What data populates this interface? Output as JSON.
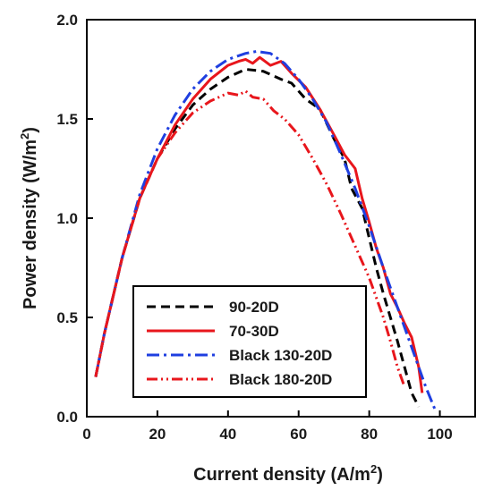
{
  "chart_data": {
    "type": "line",
    "title": "",
    "xlabel": "Current density (A/m",
    "xlabel_sup": "2",
    "xlabel_close": ")",
    "ylabel": "Power density (W/m",
    "ylabel_sup": "2",
    "ylabel_close": ")",
    "xlim": [
      0,
      110
    ],
    "ylim": [
      0,
      2.0
    ],
    "xticks": [
      0,
      20,
      40,
      60,
      80,
      100
    ],
    "xtick_labels": [
      "0",
      "20",
      "40",
      "60",
      "80",
      "100"
    ],
    "yticks": [
      0,
      0.5,
      1.0,
      1.5,
      2.0
    ],
    "ytick_labels": [
      "0.0",
      "0.5",
      "1.0",
      "1.5",
      "2.0"
    ],
    "grid": false,
    "legend_position": "bottom-left",
    "series": [
      {
        "name": "90-20D",
        "color": "#000000",
        "dash": "dashed",
        "x": [
          2.5,
          5,
          10,
          15,
          20,
          25,
          30,
          35,
          40,
          45,
          50,
          55,
          58,
          62,
          66,
          70,
          73,
          75,
          78,
          80,
          82,
          84,
          86,
          88,
          90,
          92,
          94
        ],
        "y": [
          0.2,
          0.42,
          0.8,
          1.1,
          1.3,
          1.45,
          1.57,
          1.65,
          1.71,
          1.75,
          1.74,
          1.7,
          1.68,
          1.6,
          1.55,
          1.4,
          1.3,
          1.15,
          1.05,
          0.9,
          0.75,
          0.62,
          0.5,
          0.38,
          0.25,
          0.12,
          0.05
        ]
      },
      {
        "name": "70-30D",
        "color": "#e8161c",
        "dash": "solid",
        "x": [
          2.5,
          5,
          10,
          15,
          20,
          25,
          30,
          35,
          40,
          43,
          45,
          47,
          49,
          52,
          55,
          58,
          62,
          66,
          70,
          73,
          76,
          78,
          80,
          82,
          84,
          86,
          88,
          90,
          92,
          94,
          95
        ],
        "y": [
          0.2,
          0.42,
          0.8,
          1.1,
          1.3,
          1.47,
          1.6,
          1.7,
          1.77,
          1.79,
          1.8,
          1.78,
          1.81,
          1.77,
          1.79,
          1.73,
          1.66,
          1.55,
          1.42,
          1.32,
          1.25,
          1.1,
          0.98,
          0.85,
          0.75,
          0.62,
          0.55,
          0.47,
          0.4,
          0.25,
          0.12
        ]
      },
      {
        "name": "Black 130-20D",
        "color": "#1f3fe0",
        "dash": "dashdot",
        "x": [
          2.5,
          5,
          10,
          15,
          20,
          25,
          30,
          35,
          40,
          45,
          48,
          52,
          56,
          60,
          64,
          68,
          72,
          76,
          80,
          84,
          88,
          92,
          96,
          99
        ],
        "y": [
          0.2,
          0.42,
          0.8,
          1.12,
          1.35,
          1.52,
          1.65,
          1.74,
          1.8,
          1.83,
          1.84,
          1.83,
          1.78,
          1.7,
          1.6,
          1.48,
          1.32,
          1.15,
          0.96,
          0.75,
          0.55,
          0.35,
          0.15,
          0.02
        ]
      },
      {
        "name": "Black 180-20D",
        "color": "#e8161c",
        "dash": "dashdotdot",
        "x": [
          2.5,
          5,
          10,
          15,
          20,
          25,
          30,
          35,
          40,
          43,
          45,
          47,
          50,
          53,
          56,
          60,
          64,
          68,
          72,
          75,
          77,
          80,
          82,
          84,
          86,
          88,
          90
        ],
        "y": [
          0.2,
          0.42,
          0.8,
          1.1,
          1.3,
          1.43,
          1.53,
          1.59,
          1.63,
          1.62,
          1.64,
          1.61,
          1.6,
          1.54,
          1.5,
          1.42,
          1.3,
          1.17,
          1.02,
          0.9,
          0.82,
          0.7,
          0.6,
          0.5,
          0.38,
          0.25,
          0.15
        ]
      }
    ]
  }
}
